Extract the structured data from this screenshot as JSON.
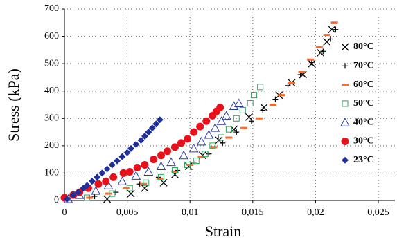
{
  "chart_data": {
    "type": "scatter",
    "x_label": "Strain",
    "y_label": "Stress (kPa)",
    "xlim": [
      0,
      0.025
    ],
    "ylim": [
      0,
      700
    ],
    "xticks": [
      0,
      {
        "value": 0.005,
        "label": "0,005"
      },
      {
        "value": 0.01,
        "label": "0,01"
      },
      {
        "value": 0.015,
        "label": "0,015"
      },
      {
        "value": 0.02,
        "label": "0,02"
      },
      {
        "value": 0.025,
        "label": "0,025"
      }
    ],
    "yticks": [
      0,
      100,
      200,
      300,
      400,
      500,
      600,
      700
    ],
    "grid": true,
    "legend": "right",
    "series": [
      {
        "name": "80°C",
        "color": "#000000",
        "marker": "x",
        "x": [
          0.0034,
          0.0053,
          0.0064,
          0.0079,
          0.0088,
          0.0099,
          0.011,
          0.0123,
          0.0135,
          0.0147,
          0.0159,
          0.0171,
          0.0181,
          0.019,
          0.0197,
          0.0204,
          0.0209,
          0.0213
        ],
        "values": [
          5,
          25,
          45,
          65,
          95,
          125,
          165,
          220,
          260,
          305,
          340,
          385,
          430,
          460,
          500,
          540,
          580,
          625
        ]
      },
      {
        "name": "70°C",
        "color": "#000000",
        "marker": "plus",
        "x": [
          0.0024,
          0.0041,
          0.006,
          0.0075,
          0.009,
          0.0104,
          0.0115,
          0.0126,
          0.0137,
          0.0149,
          0.0158,
          0.0168,
          0.0178,
          0.0188,
          0.0197,
          0.0206,
          0.0212,
          0.0216
        ],
        "values": [
          15,
          30,
          60,
          85,
          110,
          140,
          170,
          210,
          250,
          290,
          330,
          370,
          420,
          460,
          505,
          545,
          590,
          625
        ]
      },
      {
        "name": "60°C",
        "color": "#ff6a2a",
        "marker": "dash",
        "x": [
          0.002,
          0.0035,
          0.0049,
          0.0063,
          0.0076,
          0.0088,
          0.01,
          0.0109,
          0.0119,
          0.0131,
          0.0143,
          0.0155,
          0.0166,
          0.0173,
          0.0181,
          0.0189,
          0.0196,
          0.0203,
          0.0209,
          0.0215
        ],
        "values": [
          10,
          25,
          45,
          60,
          80,
          105,
          130,
          160,
          195,
          230,
          265,
          300,
          350,
          385,
          430,
          470,
          515,
          560,
          605,
          650
        ]
      },
      {
        "name": "50°C",
        "color": "#2ca25f",
        "marker": "square",
        "x": [
          0.0018,
          0.0038,
          0.0052,
          0.0065,
          0.0077,
          0.0088,
          0.0098,
          0.0105,
          0.0112,
          0.0118,
          0.0125,
          0.0131,
          0.0137,
          0.0142,
          0.0148,
          0.0151,
          0.0156
        ],
        "values": [
          10,
          25,
          45,
          65,
          85,
          110,
          130,
          145,
          170,
          200,
          230,
          260,
          300,
          330,
          355,
          385,
          415
        ]
      },
      {
        "name": "40°C",
        "color": "#2b3ea8",
        "marker": "triangle",
        "x": [
          0.0003,
          0.0012,
          0.0025,
          0.0035,
          0.0046,
          0.0057,
          0.0067,
          0.0077,
          0.0085,
          0.0095,
          0.0103,
          0.0109,
          0.0115,
          0.012,
          0.0125,
          0.0129,
          0.0135,
          0.0139
        ],
        "values": [
          5,
          20,
          35,
          55,
          70,
          90,
          105,
          125,
          140,
          165,
          190,
          215,
          240,
          265,
          290,
          310,
          345,
          355
        ]
      },
      {
        "name": "30°C",
        "color": "#e8101a",
        "marker": "circle",
        "x": [
          0,
          0.0007,
          0.0012,
          0.0019,
          0.0027,
          0.0033,
          0.0039,
          0.0047,
          0.0052,
          0.0058,
          0.0064,
          0.0071,
          0.0077,
          0.0082,
          0.0088,
          0.0093,
          0.0098,
          0.0103,
          0.0108,
          0.0113,
          0.0118,
          0.0121,
          0.0124
        ],
        "values": [
          10,
          20,
          30,
          45,
          60,
          70,
          85,
          100,
          105,
          120,
          130,
          150,
          165,
          180,
          195,
          210,
          225,
          250,
          270,
          290,
          310,
          325,
          340
        ]
      },
      {
        "name": "23°C",
        "color": "#1f2f9b",
        "marker": "diamond",
        "x": [
          0.0002,
          0.0007,
          0.0011,
          0.0015,
          0.0018,
          0.0022,
          0.0026,
          0.003,
          0.0034,
          0.0038,
          0.0042,
          0.0046,
          0.005,
          0.0053,
          0.0057,
          0.0061,
          0.0064,
          0.0067,
          0.007,
          0.0073,
          0.0076
        ],
        "values": [
          5,
          20,
          30,
          45,
          55,
          70,
          85,
          100,
          115,
          130,
          145,
          160,
          175,
          190,
          205,
          220,
          235,
          250,
          265,
          280,
          295
        ]
      }
    ]
  }
}
